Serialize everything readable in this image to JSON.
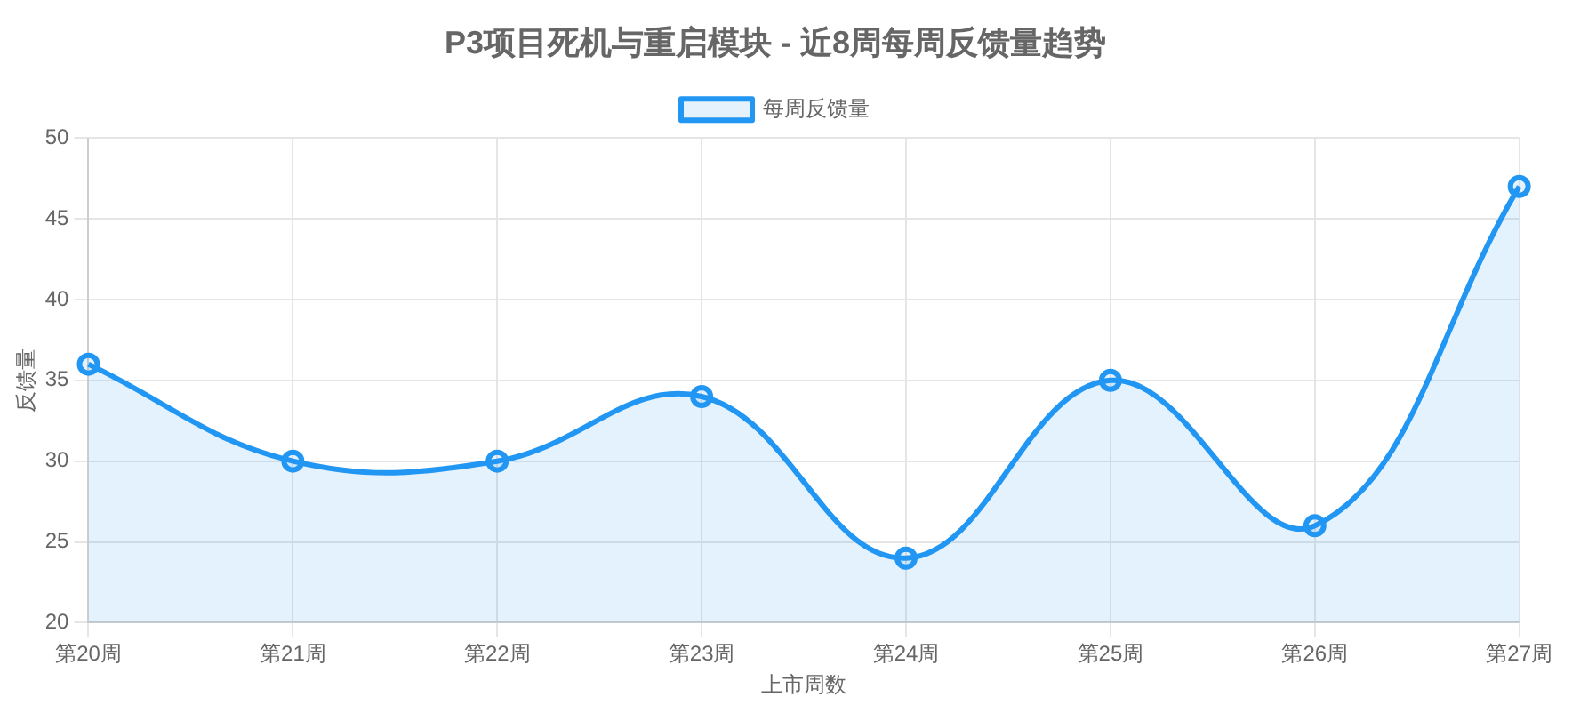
{
  "chart_data": {
    "type": "area",
    "title": "P3项目死机与重启模块 - 近8周每周反馈量趋势",
    "xlabel": "上市周数",
    "ylabel": "反馈量",
    "categories": [
      "第20周",
      "第21周",
      "第22周",
      "第23周",
      "第24周",
      "第25周",
      "第26周",
      "第27周"
    ],
    "series": [
      {
        "name": "每周反馈量",
        "color": "#2196f3",
        "values": [
          36,
          30,
          30,
          34,
          24,
          35,
          26,
          47
        ]
      }
    ],
    "ylim": [
      20,
      50
    ],
    "yticks": [
      20,
      25,
      30,
      35,
      40,
      45,
      50
    ],
    "grid": true,
    "legend": "top",
    "marker": "circle"
  }
}
